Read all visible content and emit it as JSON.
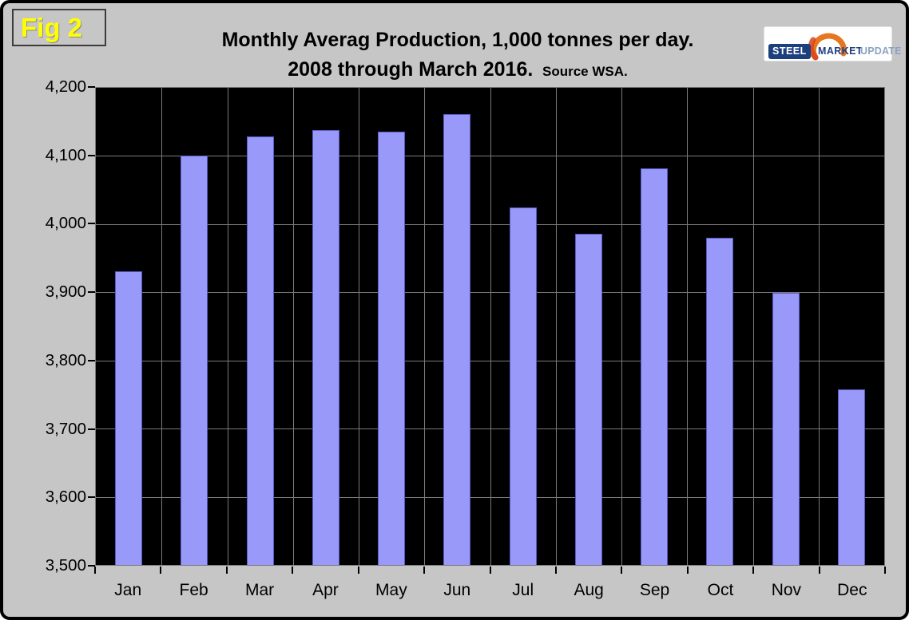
{
  "figure_label": "Fig 2",
  "title": {
    "line1": "Monthly Averag Production, 1,000 tonnes per day.",
    "line2": "2008 through March 2016.",
    "source": "Source WSA."
  },
  "logo": {
    "steel": "STEEL",
    "market": "MARKET",
    "update": "UPDATE"
  },
  "colors": {
    "background": "#c6c6c6",
    "plot_background": "#000000",
    "bar_fill": "#9999fa",
    "bar_border": "#5a5ac8",
    "gridline": "#7a7a7a",
    "figure_label_color": "#ffff00",
    "logo_navy": "#1c3f7e",
    "logo_update_blue": "#8ba3c2",
    "logo_orange": "#e8761f"
  },
  "chart_data": {
    "type": "bar",
    "title": "Monthly Averag Production, 1,000 tonnes per day. 2008 through March 2016. Source WSA.",
    "categories": [
      "Jan",
      "Feb",
      "Mar",
      "Apr",
      "May",
      "Jun",
      "Jul",
      "Aug",
      "Sep",
      "Oct",
      "Nov",
      "Dec"
    ],
    "values": [
      3931,
      4101,
      4129,
      4138,
      4136,
      4161,
      4024,
      3986,
      4082,
      3980,
      3899,
      3757
    ],
    "xlabel": "",
    "ylabel": "",
    "ylim": [
      3500,
      4200
    ],
    "ytick_step": 100,
    "ytick_labels": [
      "4,200",
      "4,100",
      "4,000",
      "3,900",
      "3,800",
      "3,700",
      "3,600",
      "3,500"
    ],
    "grid": true,
    "legend": false,
    "plot_style": "black background, gray gridlines, periwinkle bars"
  }
}
